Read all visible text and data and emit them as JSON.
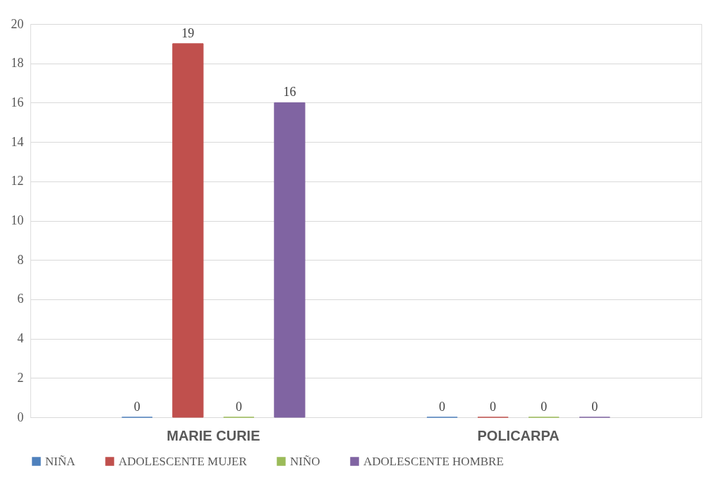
{
  "chart_data": {
    "type": "bar",
    "categories": [
      "MARIE CURIE",
      "POLICARPA"
    ],
    "series": [
      {
        "name": "NIÑA",
        "color": "#4f81bd",
        "values": [
          0,
          0
        ]
      },
      {
        "name": "ADOLESCENTE MUJER",
        "color": "#c0504d",
        "values": [
          19,
          0
        ]
      },
      {
        "name": "NIÑO",
        "color": "#9bbb59",
        "values": [
          0,
          0
        ]
      },
      {
        "name": "ADOLESCENTE HOMBRE",
        "color": "#8064a2",
        "values": [
          16,
          0
        ]
      }
    ],
    "ylim": [
      0,
      20
    ],
    "yticks": [
      0,
      2,
      4,
      6,
      8,
      10,
      12,
      14,
      16,
      18,
      20
    ],
    "grid": "y",
    "legend": "bottom",
    "data_labels": true
  }
}
